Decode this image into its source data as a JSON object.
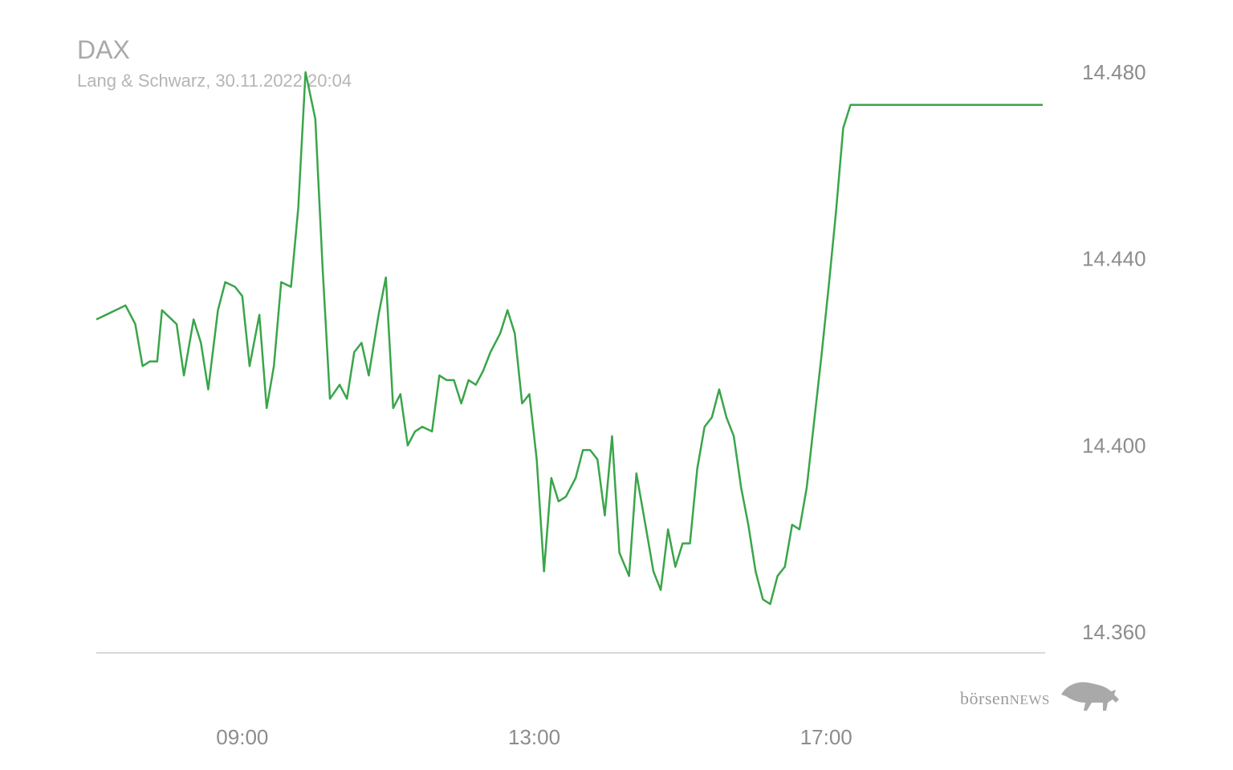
{
  "header": {
    "title": "DAX",
    "subtitle": "Lang & Schwarz, 30.11.2022 20:04"
  },
  "logo": {
    "word_lower": "börsen",
    "word_caps": "NEWS",
    "icon": "bull-icon"
  },
  "colors": {
    "line": "#3aa54a",
    "baseline": "#d8d8d8",
    "text": "#8c8c8c"
  },
  "chart_data": {
    "type": "line",
    "title": "DAX",
    "subtitle": "Lang & Schwarz, 30.11.2022 20:04",
    "x_unit": "time of day",
    "xlim": [
      "07:00",
      "20:00"
    ],
    "ylim": [
      14356,
      14484
    ],
    "y_ticks": [
      14480,
      14440,
      14400,
      14360
    ],
    "y_tick_labels": [
      "14.480",
      "14.440",
      "14.400",
      "14.360"
    ],
    "x_ticks": [
      "09:00",
      "13:00",
      "17:00"
    ],
    "grid": false,
    "legend": "none",
    "series": [
      {
        "x": [
          "07:00",
          "07:24",
          "07:32",
          "07:38",
          "07:44",
          "07:50",
          "07:54",
          "08:06",
          "08:12",
          "08:20",
          "08:26",
          "08:32",
          "08:40",
          "08:46",
          "08:54",
          "09:00",
          "09:06",
          "09:14",
          "09:20",
          "09:26",
          "09:32",
          "09:40",
          "09:46",
          "09:52",
          "10:00",
          "10:06",
          "10:12",
          "10:20",
          "10:26",
          "10:32",
          "10:38",
          "10:44",
          "10:52",
          "10:58",
          "11:04",
          "11:10",
          "11:16",
          "11:22",
          "11:28",
          "11:36",
          "11:42",
          "11:48",
          "11:54",
          "12:00",
          "12:06",
          "12:12",
          "12:18",
          "12:24",
          "12:32",
          "12:38",
          "12:44",
          "12:50",
          "12:56",
          "13:02",
          "13:08",
          "13:14",
          "13:20",
          "13:26",
          "13:34",
          "13:40",
          "13:46",
          "13:52",
          "13:58",
          "14:04",
          "14:10",
          "14:18",
          "14:24",
          "14:32",
          "14:38",
          "14:44",
          "14:50",
          "14:56",
          "15:02",
          "15:08",
          "15:14",
          "15:20",
          "15:26",
          "15:32",
          "15:38",
          "15:44",
          "15:50",
          "15:56",
          "16:02",
          "16:08",
          "16:14",
          "16:20",
          "16:26",
          "16:32",
          "16:38",
          "16:44",
          "16:50",
          "16:56",
          "17:02",
          "17:08",
          "17:14",
          "17:20",
          "17:26",
          "17:32",
          "17:38",
          "17:44",
          "17:50",
          "17:56",
          "18:02",
          "18:08",
          "18:14",
          "18:20",
          "18:26",
          "18:32",
          "19:58"
        ],
        "y": [
          14427,
          14430,
          14426,
          14417,
          14418,
          14418,
          14429,
          14426,
          14415,
          14427,
          14422,
          14412,
          14429,
          14435,
          14434,
          14432,
          14417,
          14428,
          14408,
          14417,
          14435,
          14434,
          14451,
          14480,
          14470,
          14438,
          14410,
          14413,
          14410,
          14420,
          14422,
          14415,
          14428,
          14436,
          14408,
          14411,
          14400,
          14403,
          14404,
          14403,
          14415,
          14414,
          14414,
          14409,
          14414,
          14413,
          14416,
          14420,
          14424,
          14429,
          14424,
          14409,
          14411,
          14397,
          14373,
          14393,
          14388,
          14389,
          14393,
          14399,
          14399,
          14397,
          14385,
          14402,
          14377,
          14372,
          14394,
          14382,
          14373,
          14369,
          14382,
          14374,
          14379,
          14379,
          14395,
          14404,
          14406,
          14412,
          14406,
          14402,
          14391,
          14383,
          14373,
          14367,
          14366,
          14372,
          14374,
          14383,
          14382,
          14391,
          14405,
          14419,
          14434,
          14450,
          14468,
          14473,
          14473,
          14473,
          14473,
          14473,
          14473,
          14473,
          14473,
          14473,
          14473,
          14473,
          14473,
          14473,
          14473
        ],
        "values_note": ""
      }
    ]
  }
}
